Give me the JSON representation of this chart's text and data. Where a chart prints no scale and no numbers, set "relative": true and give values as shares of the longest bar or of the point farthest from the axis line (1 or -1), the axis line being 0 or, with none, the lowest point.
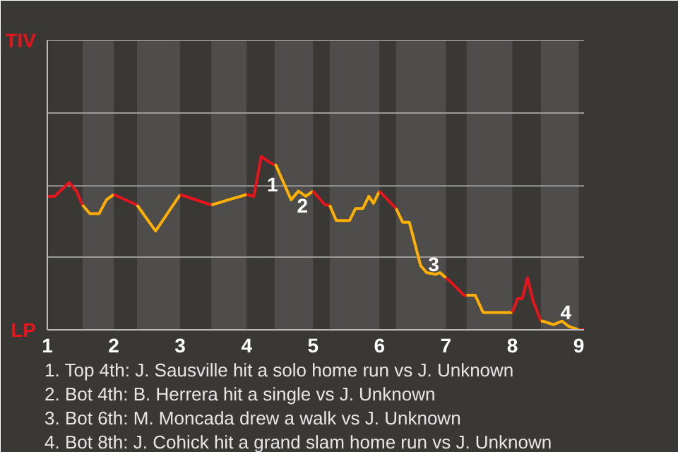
{
  "chart_data": {
    "type": "line",
    "relative": true,
    "xlim": [
      1,
      9.08
    ],
    "xticks": [
      {
        "value": 1,
        "label": "1"
      },
      {
        "value": 2,
        "label": "2"
      },
      {
        "value": 3,
        "label": "3"
      },
      {
        "value": 4,
        "label": "4"
      },
      {
        "value": 5,
        "label": "5"
      },
      {
        "value": 6,
        "label": "6"
      },
      {
        "value": 7,
        "label": "7"
      },
      {
        "value": 8,
        "label": "8"
      },
      {
        "value": 9,
        "label": "9"
      }
    ],
    "line_style": "solid",
    "ref_lines": [
      {
        "axis": "y",
        "value": 0.42,
        "color": "#9a9a9a"
      },
      {
        "axis": "y",
        "value": 0.83,
        "color": "#9a9a9a"
      },
      {
        "axis": "y",
        "value": 1.25,
        "color": "#9a9a9a"
      },
      {
        "axis": "y",
        "value": 1.67,
        "color": "#9a9a9a"
      }
    ],
    "series": [
      {
        "color": "#e8141c",
        "x": [
          1,
          1.11,
          1.33,
          1.44,
          1.53
        ],
        "values": [
          0.77,
          0.77,
          0.85,
          0.8,
          0.72
        ]
      },
      {
        "color": "#ffb000",
        "x": [
          1.53,
          1.64,
          1.78,
          1.89,
          2
        ],
        "values": [
          0.72,
          0.67,
          0.67,
          0.75,
          0.78
        ]
      },
      {
        "color": "#e8141c",
        "x": [
          2,
          2.35
        ],
        "values": [
          0.78,
          0.72
        ]
      },
      {
        "color": "#ffb000",
        "x": [
          2.35,
          2.63,
          3
        ],
        "values": [
          0.72,
          0.57,
          0.78
        ]
      },
      {
        "color": "#e8141c",
        "x": [
          3,
          3.47
        ],
        "values": [
          0.78,
          0.72
        ]
      },
      {
        "color": "#ffb000",
        "x": [
          3.47,
          3.73,
          4
        ],
        "values": [
          0.72,
          0.75,
          0.78
        ]
      },
      {
        "color": "#e8141c",
        "x": [
          4,
          4.11,
          4.22,
          4.33,
          4.42
        ],
        "values": [
          0.78,
          0.77,
          1,
          0.97,
          0.95
        ]
      },
      {
        "color": "#ffb000",
        "x": [
          4.42,
          4.44,
          4.67,
          4.78,
          4.89,
          5
        ],
        "values": [
          0.95,
          0.95,
          0.75,
          0.8,
          0.77,
          0.8
        ]
      },
      {
        "color": "#e8141c",
        "x": [
          5,
          5.18,
          5.25
        ],
        "values": [
          0.8,
          0.72,
          0.72
        ]
      },
      {
        "color": "#ffb000",
        "x": [
          5.25,
          5.35,
          5.55,
          5.64,
          5.75,
          5.84,
          5.91,
          6
        ],
        "values": [
          0.72,
          0.63,
          0.63,
          0.7,
          0.7,
          0.77,
          0.73,
          0.8
        ]
      },
      {
        "color": "#e8141c",
        "x": [
          6,
          6.25
        ],
        "values": [
          0.8,
          0.7
        ]
      },
      {
        "color": "#ffb000",
        "x": [
          6.25,
          6.35,
          6.45,
          6.62,
          6.71,
          6.85,
          6.91,
          7
        ],
        "values": [
          0.7,
          0.62,
          0.62,
          0.37,
          0.33,
          0.32,
          0.33,
          0.3
        ]
      },
      {
        "color": "#e8141c",
        "x": [
          7,
          7.09,
          7.27,
          7.31
        ],
        "values": [
          0.3,
          0.27,
          0.2,
          0.2
        ]
      },
      {
        "color": "#ffb000",
        "x": [
          7.31,
          7.44,
          7.56,
          7.71,
          8
        ],
        "values": [
          0.2,
          0.2,
          0.1,
          0.1,
          0.1
        ]
      },
      {
        "color": "#e8141c",
        "x": [
          8,
          8.08,
          8.15,
          8.23,
          8.31,
          8.43
        ],
        "values": [
          0.1,
          0.18,
          0.18,
          0.3,
          0.17,
          0.05
        ]
      },
      {
        "color": "#ffb000",
        "x": [
          8.43,
          8.46,
          8.62,
          8.75,
          8.85,
          9
        ],
        "values": [
          0.05,
          0.05,
          0.03,
          0.05,
          0.02,
          0
        ]
      },
      {
        "color": "#e8141c",
        "x": [
          9,
          9.08
        ],
        "values": [
          0,
          0
        ]
      }
    ],
    "bands": [
      {
        "axis": "x",
        "from": 1.53,
        "to": 2,
        "color": "#4e4d4b"
      },
      {
        "axis": "x",
        "from": 2.35,
        "to": 3,
        "color": "#4e4d4b"
      },
      {
        "axis": "x",
        "from": 3.47,
        "to": 4,
        "color": "#4e4d4b"
      },
      {
        "axis": "x",
        "from": 4.42,
        "to": 5,
        "color": "#4e4d4b"
      },
      {
        "axis": "x",
        "from": 5.25,
        "to": 6,
        "color": "#4e4d4b"
      },
      {
        "axis": "x",
        "from": 6.25,
        "to": 7,
        "color": "#4e4d4b"
      },
      {
        "axis": "x",
        "from": 7.31,
        "to": 8,
        "color": "#4e4d4b"
      },
      {
        "axis": "x",
        "from": 8.43,
        "to": 9,
        "color": "#4e4d4b"
      }
    ],
    "annotations": [
      "TIV",
      "LP",
      {
        "text": "1",
        "x": 4.22,
        "y": 1
      },
      {
        "text": "2",
        "x": 4.67,
        "y": 0.75
      },
      {
        "text": "3",
        "x": 6.71,
        "y": 0.33
      },
      {
        "text": "4",
        "x": 8.85,
        "y": 0.02
      },
      "1. Top 4th: J. Sausville hit a solo home run vs J. Unknown",
      "2. Bot 4th: B. Herrera hit a single vs J. Unknown",
      "3. Bot 6th: M. Moncada drew a walk vs J. Unknown",
      "4. Bot 8th: J. Cohick hit a grand slam home run vs J. Unknown"
    ]
  }
}
